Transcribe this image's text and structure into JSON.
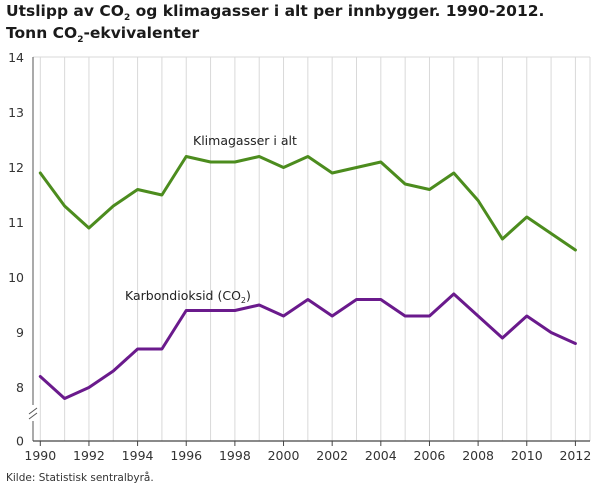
{
  "title": {
    "line1_a": "Utslipp av CO",
    "line1_sub": "2",
    "line1_b": " og klimagasser i alt per innbygger. 1990-2012.",
    "line2_a": "Tonn CO",
    "line2_sub": "2",
    "line2_b": "-ekvivalenter"
  },
  "source": "Kilde: Statistisk sentralbyrå.",
  "chart_data": {
    "type": "line",
    "title": "Utslipp av CO2 og klimagasser i alt per innbygger. 1990-2012. Tonn CO2-ekvivalenter",
    "xlabel": "",
    "ylabel": "",
    "x": [
      1990,
      1991,
      1992,
      1993,
      1994,
      1995,
      1996,
      1997,
      1998,
      1999,
      2000,
      2001,
      2002,
      2003,
      2004,
      2005,
      2006,
      2007,
      2008,
      2009,
      2010,
      2011,
      2012
    ],
    "x_ticks": [
      "1990",
      "1992",
      "1994",
      "1996",
      "1998",
      "2000",
      "2002",
      "2004",
      "2006",
      "2008",
      "2010",
      "2012"
    ],
    "y_ticks": [
      "0",
      "8",
      "9",
      "10",
      "11",
      "12",
      "13",
      "14"
    ],
    "ylim": [
      0,
      14
    ],
    "y_axis_break": "between 0 and 8",
    "grid": "vertical",
    "series": [
      {
        "name": "Klimagasser i alt",
        "label_text": "Klimagasser i alt",
        "color": "#4c8c1e",
        "values": [
          11.9,
          11.3,
          10.9,
          11.3,
          11.6,
          11.5,
          12.2,
          12.1,
          12.1,
          12.2,
          12.0,
          12.2,
          11.9,
          12.0,
          12.1,
          11.7,
          11.6,
          11.9,
          11.4,
          10.7,
          11.1,
          10.8,
          10.5
        ]
      },
      {
        "name": "Karbondioksid (CO2)",
        "label_text_a": "Karbondioksid (CO",
        "label_text_sub": "2",
        "label_text_b": ")",
        "color": "#6a1a8c",
        "values": [
          8.2,
          7.8,
          8.0,
          8.3,
          8.7,
          8.7,
          9.4,
          9.4,
          9.4,
          9.5,
          9.3,
          9.6,
          9.3,
          9.6,
          9.6,
          9.3,
          9.3,
          9.7,
          9.3,
          8.9,
          9.3,
          9.0,
          8.8
        ]
      }
    ]
  }
}
